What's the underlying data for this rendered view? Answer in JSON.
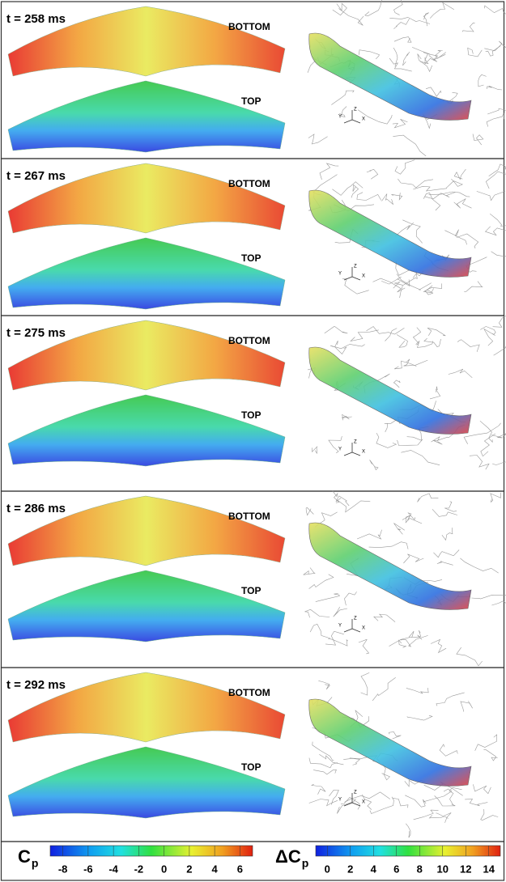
{
  "panels": [
    {
      "time": "t = 258 ms",
      "bottom": "BOTTOM",
      "top": "TOP"
    },
    {
      "time": "t = 267 ms",
      "bottom": "BOTTOM",
      "top": "TOP"
    },
    {
      "time": "t = 275 ms",
      "bottom": "BOTTOM",
      "top": "TOP"
    },
    {
      "time": "t = 286 ms",
      "bottom": "BOTTOM",
      "top": "TOP"
    },
    {
      "time": "t = 292 ms",
      "bottom": "BOTTOM",
      "top": "TOP"
    }
  ],
  "triad": {
    "y": "Y",
    "z": "Z",
    "x": "X"
  },
  "colorbars": [
    {
      "label": "C",
      "sub": "p",
      "ticks": [
        -8,
        -6,
        -4,
        -2,
        0,
        2,
        4,
        6
      ]
    },
    {
      "label": "ΔC",
      "sub": "p",
      "ticks": [
        0,
        2,
        4,
        6,
        8,
        10,
        12,
        14
      ]
    }
  ]
}
